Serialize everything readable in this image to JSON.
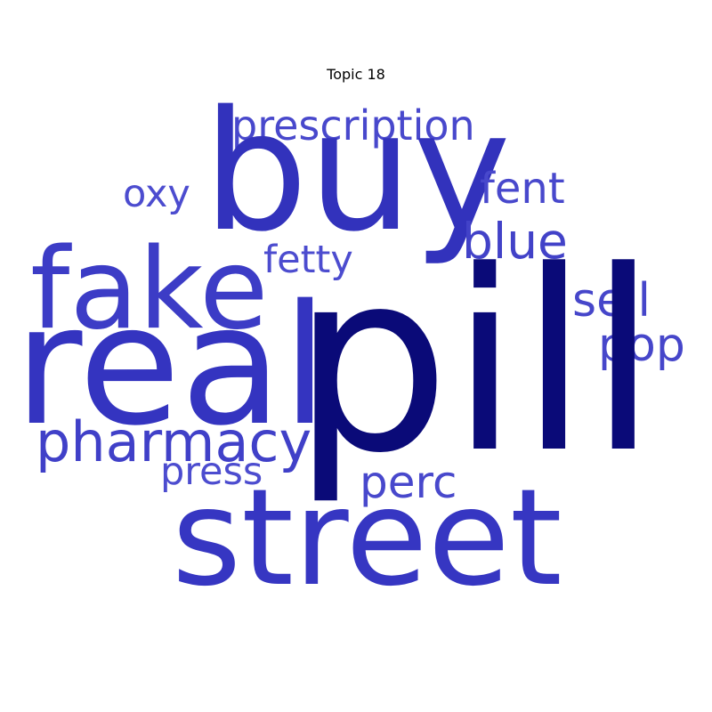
{
  "title": "Topic 18",
  "words": {
    "pill": {
      "text": "pill",
      "color": "#0a0a78"
    },
    "real": {
      "text": "real",
      "color": "#3434c0"
    },
    "buy": {
      "text": "buy",
      "color": "#3232bc"
    },
    "street": {
      "text": "street",
      "color": "#3636c2"
    },
    "fake": {
      "text": "fake",
      "color": "#3c3cc6"
    },
    "pharmacy": {
      "text": "pharmacy",
      "color": "#4040c8"
    },
    "prescription": {
      "text": "prescription",
      "color": "#4848cc"
    },
    "blue": {
      "text": "blue",
      "color": "#4242c8"
    },
    "fent": {
      "text": "fent",
      "color": "#4848cc"
    },
    "sell": {
      "text": "sell",
      "color": "#4646ca"
    },
    "pop": {
      "text": "pop",
      "color": "#4646ca"
    },
    "perc": {
      "text": "perc",
      "color": "#4848cc"
    },
    "press": {
      "text": "press",
      "color": "#4c4ccf"
    },
    "fetty": {
      "text": "fetty",
      "color": "#4c4ccf"
    },
    "oxy": {
      "text": "oxy",
      "color": "#4c4ccf"
    }
  }
}
